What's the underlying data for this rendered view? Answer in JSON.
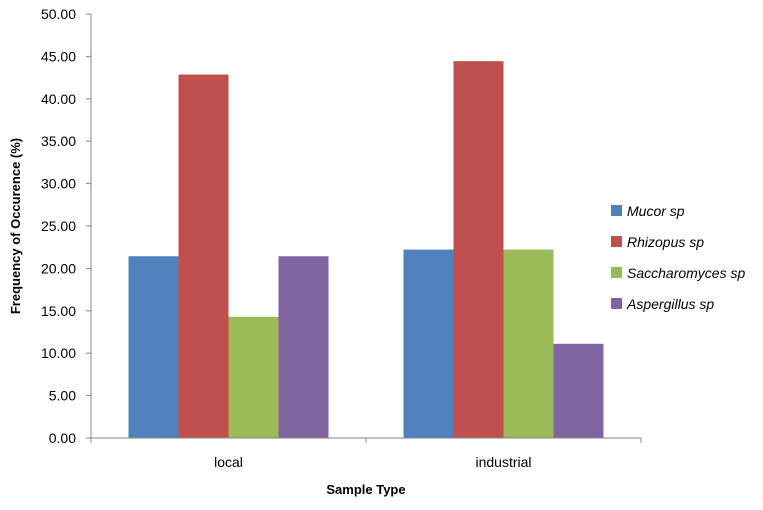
{
  "chart_data": {
    "type": "bar",
    "title": "",
    "xlabel": "Sample Type",
    "ylabel": "Frequency of Occurence (%)",
    "categories": [
      "local",
      "industrial"
    ],
    "ylim": [
      0,
      50
    ],
    "y_ticks": [
      "0.00",
      "5.00",
      "10.00",
      "15.00",
      "20.00",
      "25.00",
      "30.00",
      "35.00",
      "40.00",
      "45.00",
      "50.00"
    ],
    "grid": false,
    "legend_position": "right",
    "series": [
      {
        "name": "Mucor sp",
        "color": "#4f81bd",
        "values": [
          21.43,
          22.22
        ]
      },
      {
        "name": "Rhizopus sp",
        "color": "#c0504d",
        "values": [
          42.86,
          44.44
        ]
      },
      {
        "name": "Saccharomyces sp",
        "color": "#9bbb59",
        "values": [
          14.29,
          22.22
        ]
      },
      {
        "name": "Aspergillus sp",
        "color": "#8064a2",
        "values": [
          21.43,
          11.11
        ]
      }
    ]
  }
}
